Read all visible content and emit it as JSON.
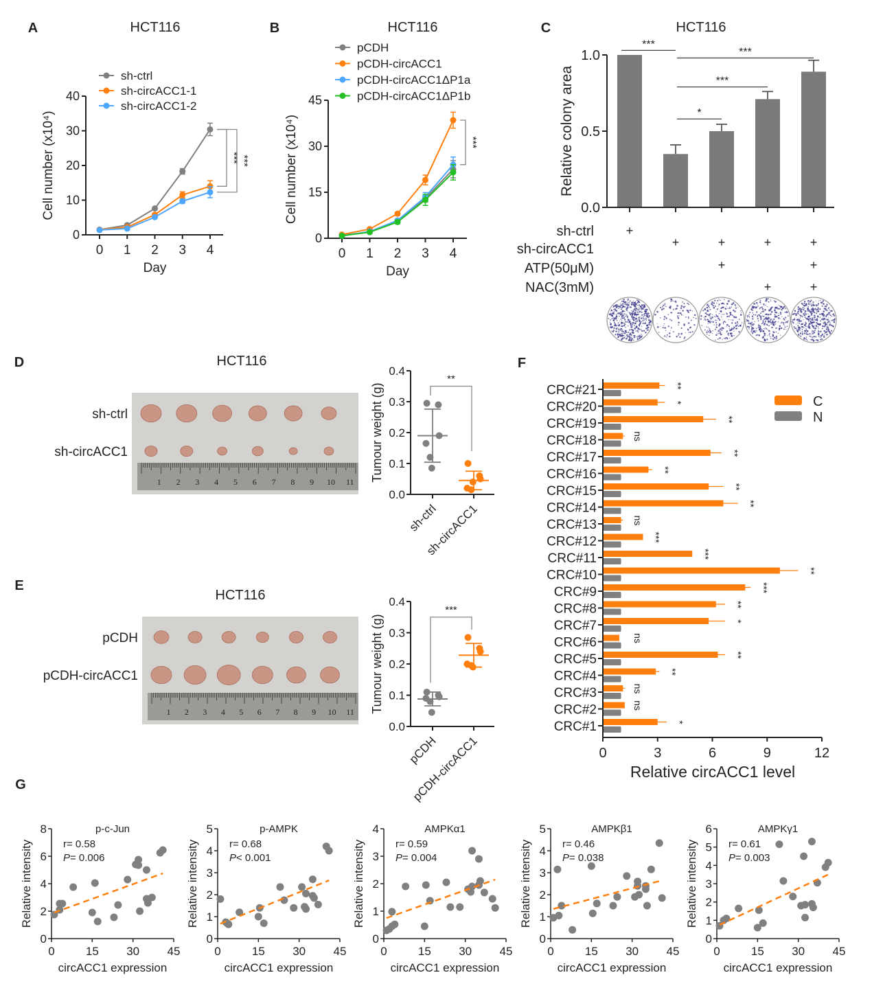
{
  "colors": {
    "gray": "#808080",
    "orange": "#ff7f0e",
    "blue": "#4da6ff",
    "green": "#22c022",
    "bar_gray": "#7a7a7a",
    "colony": "#3c3a8a"
  },
  "chart_data": [
    {
      "panel": "A",
      "type": "line",
      "title": "HCT116",
      "xlabel": "Day",
      "ylabel": "Cell number (x10⁴)",
      "x": [
        0,
        1,
        2,
        3,
        4
      ],
      "ylim": [
        0,
        40
      ],
      "yticks": [
        0,
        10,
        20,
        30,
        40
      ],
      "series": [
        {
          "name": "sh-ctrl",
          "color": "#808080",
          "values": [
            1.5,
            2.8,
            7.6,
            18.3,
            30.4
          ],
          "errors": [
            0.3,
            0.3,
            0.4,
            0.8,
            1.8
          ]
        },
        {
          "name": "sh-circACC1-1",
          "color": "#ff7f0e",
          "values": [
            1.5,
            2.2,
            5.8,
            11.5,
            14.0
          ],
          "errors": [
            0.3,
            0.3,
            0.4,
            0.9,
            1.6
          ]
        },
        {
          "name": "sh-circACC1-2",
          "color": "#4da6ff",
          "values": [
            1.4,
            1.8,
            5.1,
            9.7,
            12.3
          ],
          "errors": [
            0.3,
            0.3,
            0.4,
            0.6,
            1.6
          ]
        }
      ],
      "significance": [
        "***",
        "***"
      ]
    },
    {
      "panel": "B",
      "type": "line",
      "title": "HCT116",
      "xlabel": "Day",
      "ylabel": "Cell number (x10⁴)",
      "x": [
        0,
        1,
        2,
        3,
        4
      ],
      "ylim": [
        0,
        45
      ],
      "yticks": [
        0,
        15,
        30,
        45
      ],
      "series": [
        {
          "name": "pCDH",
          "color": "#808080",
          "values": [
            1.0,
            2.0,
            5.5,
            13.0,
            22.5
          ],
          "errors": [
            0.3,
            0.3,
            0.5,
            1.2,
            2.8
          ]
        },
        {
          "name": "pCDH-circACC1",
          "color": "#ff7f0e",
          "values": [
            1.2,
            3.0,
            8.0,
            19.0,
            38.5
          ],
          "errors": [
            0.3,
            0.4,
            0.5,
            1.6,
            2.6
          ]
        },
        {
          "name": "pCDH-circACC1ΔP1a",
          "color": "#4da6ff",
          "values": [
            0.8,
            2.2,
            5.8,
            13.5,
            24.0
          ],
          "errors": [
            0.3,
            0.3,
            0.5,
            1.4,
            2.5
          ]
        },
        {
          "name": "pCDH-circACC1ΔP1b",
          "color": "#22c022",
          "values": [
            0.8,
            2.0,
            5.3,
            12.5,
            21.5
          ],
          "errors": [
            0.3,
            0.3,
            0.6,
            1.8,
            2.5
          ]
        }
      ],
      "significance": [
        "***"
      ]
    },
    {
      "panel": "C",
      "type": "bar",
      "title": "HCT116",
      "ylabel": "Relative colony area",
      "ylim": [
        0,
        1.0
      ],
      "yticks": [
        "0.0",
        "0.5",
        "1.0"
      ],
      "values": [
        1.0,
        0.35,
        0.5,
        0.71,
        0.89
      ],
      "errors": [
        0,
        0.06,
        0.045,
        0.05,
        0.075
      ],
      "comparisons": [
        {
          "from": 0,
          "to": 1,
          "label": "***"
        },
        {
          "from": 1,
          "to": 4,
          "label": "***"
        },
        {
          "from": 1,
          "to": 3,
          "label": "***"
        },
        {
          "from": 1,
          "to": 2,
          "label": "*"
        }
      ],
      "conditions": [
        {
          "label": "sh-ctrl",
          "marks": [
            "+",
            "",
            "",
            "",
            ""
          ]
        },
        {
          "label": "sh-circACC1",
          "marks": [
            "",
            "+",
            "+",
            "+",
            "+"
          ]
        },
        {
          "label": "ATP(50μM)",
          "marks": [
            "",
            "",
            "+",
            "",
            "+"
          ]
        },
        {
          "label": "NAC(3mM)",
          "marks": [
            "",
            "",
            "",
            "+",
            "+"
          ]
        }
      ]
    },
    {
      "panel": "D",
      "type": "scatter",
      "title": "HCT116",
      "ylabel": "Tumour weight (g)",
      "photo_rows": [
        "sh-ctrl",
        "sh-circACC1"
      ],
      "ylim": [
        0,
        0.4
      ],
      "yticks": [
        "0.0",
        "0.1",
        "0.2",
        "0.3",
        "0.4"
      ],
      "groups": [
        {
          "name": "sh-ctrl",
          "color": "#808080",
          "values": [
            0.295,
            0.29,
            0.19,
            0.165,
            0.12,
            0.085
          ],
          "mean": 0.19,
          "sd": 0.086
        },
        {
          "name": "sh-circACC1",
          "color": "#ff7f0e",
          "values": [
            0.1,
            0.06,
            0.05,
            0.02,
            0.015,
            0.04
          ],
          "mean": 0.045,
          "sd": 0.03
        }
      ],
      "significance": "**"
    },
    {
      "panel": "E",
      "type": "scatter",
      "title": "HCT116",
      "ylabel": "Tumour weight (g)",
      "photo_rows": [
        "pCDH",
        "pCDH-circACC1"
      ],
      "ylim": [
        0,
        0.4
      ],
      "yticks": [
        "0.0",
        "0.1",
        "0.2",
        "0.3",
        "0.4"
      ],
      "groups": [
        {
          "name": "pCDH",
          "color": "#808080",
          "values": [
            0.11,
            0.1,
            0.095,
            0.09,
            0.08,
            0.045
          ],
          "mean": 0.088,
          "sd": 0.022
        },
        {
          "name": "pCDH-circACC1",
          "color": "#ff7f0e",
          "values": [
            0.285,
            0.25,
            0.24,
            0.2,
            0.195,
            0.19
          ],
          "mean": 0.228,
          "sd": 0.038
        }
      ],
      "significance": "***"
    },
    {
      "panel": "F",
      "type": "bar",
      "orientation": "horizontal",
      "xlabel": "Relative circACC1 level",
      "xlim": [
        0,
        12
      ],
      "xticks": [
        0,
        3,
        6,
        9,
        12
      ],
      "legend": [
        {
          "name": "C",
          "color": "#ff7f0e"
        },
        {
          "name": "N",
          "color": "#808080"
        }
      ],
      "categories": [
        "CRC#21",
        "CRC#20",
        "CRC#19",
        "CRC#18",
        "CRC#17",
        "CRC#16",
        "CRC#15",
        "CRC#14",
        "CRC#13",
        "CRC#12",
        "CRC#11",
        "CRC#10",
        "CRC#9",
        "CRC#8",
        "CRC#7",
        "CRC#6",
        "CRC#5",
        "CRC#4",
        "CRC#3",
        "CRC#2",
        "CRC#1"
      ],
      "series": [
        {
          "name": "C",
          "values": [
            3.1,
            3.0,
            5.5,
            1.1,
            5.9,
            2.5,
            5.8,
            6.6,
            1.0,
            2.2,
            4.9,
            9.7,
            7.8,
            6.2,
            5.8,
            0.9,
            6.3,
            2.9,
            1.1,
            1.2,
            3.0
          ],
          "errors": [
            0.3,
            0.4,
            0.7,
            0.1,
            0.6,
            0.2,
            0.8,
            0.8,
            0.1,
            0.0,
            0.0,
            1.0,
            0.3,
            0.5,
            0.9,
            0.0,
            0.4,
            0.2,
            0.1,
            0.0,
            0.5
          ]
        },
        {
          "name": "N",
          "values": [
            1,
            1,
            1,
            1,
            1,
            1,
            1,
            1,
            1,
            1,
            1,
            1,
            1,
            1,
            1,
            1,
            1,
            1,
            1,
            1,
            1
          ]
        }
      ],
      "significance": [
        "**",
        "*",
        "**",
        "ns",
        "**",
        "**",
        "**",
        "**",
        "ns",
        "***",
        "***",
        "**",
        "***",
        "**",
        "*",
        "ns",
        "**",
        "**",
        "ns",
        "ns",
        "*"
      ]
    },
    {
      "panel": "G",
      "type": "scatter",
      "plots": [
        {
          "title": "p-c-Jun",
          "r": "r= 0.58",
          "p_symbol": "P",
          "p_value": "= 0.006",
          "ylim": [
            0,
            8
          ],
          "yticks": [
            0,
            2,
            4,
            6,
            8
          ],
          "points": [
            [
              1,
              1.75
            ],
            [
              3,
              2.1
            ],
            [
              3,
              2.55
            ],
            [
              4,
              2.55
            ],
            [
              8,
              3.75
            ],
            [
              15,
              1.9
            ],
            [
              16,
              4.05
            ],
            [
              17,
              1.25
            ],
            [
              23,
              1.55
            ],
            [
              24.5,
              2.45
            ],
            [
              28,
              4.3
            ],
            [
              31,
              5.4
            ],
            [
              31.5,
              5.45
            ],
            [
              32,
              5.75
            ],
            [
              32,
              5.35
            ],
            [
              32.5,
              2.0
            ],
            [
              35,
              5.0
            ],
            [
              35,
              2.9
            ],
            [
              35.5,
              2.6
            ],
            [
              37,
              3.0
            ],
            [
              40,
              6.25
            ],
            [
              41,
              6.45
            ]
          ],
          "trend": [
            [
              1,
              1.9
            ],
            [
              41,
              4.75
            ]
          ]
        },
        {
          "title": "p-AMPK",
          "r": "r= 0.68",
          "p_symbol": "P",
          "p_value": "< 0.001",
          "ylim": [
            0,
            5
          ],
          "yticks": [
            0,
            1,
            2,
            3,
            4,
            5
          ],
          "points": [
            [
              1,
              1.8
            ],
            [
              3,
              0.75
            ],
            [
              3.5,
              0.7
            ],
            [
              4,
              0.65
            ],
            [
              8,
              1.2
            ],
            [
              15,
              1.0
            ],
            [
              15.5,
              1.4
            ],
            [
              17,
              0.7
            ],
            [
              23,
              2.35
            ],
            [
              24.5,
              1.75
            ],
            [
              28,
              1.4
            ],
            [
              31,
              2.35
            ],
            [
              32,
              1.45
            ],
            [
              32.5,
              1.35
            ],
            [
              32.5,
              2.05
            ],
            [
              35,
              2.7
            ],
            [
              35,
              1.95
            ],
            [
              35.5,
              1.85
            ],
            [
              37,
              1.55
            ],
            [
              40,
              4.2
            ],
            [
              41,
              4.0
            ]
          ],
          "trend": [
            [
              1,
              0.68
            ],
            [
              41,
              2.65
            ]
          ]
        },
        {
          "title": "AMPKα1",
          "r": "r= 0.59",
          "p_symbol": "P",
          "p_value": "= 0.004",
          "ylim": [
            0,
            4
          ],
          "yticks": [
            0,
            1,
            2,
            3,
            4
          ],
          "points": [
            [
              1,
              0.3
            ],
            [
              2,
              0.35
            ],
            [
              3,
              0.45
            ],
            [
              3,
              0.98
            ],
            [
              4,
              0.52
            ],
            [
              8,
              1.9
            ],
            [
              15,
              0.45
            ],
            [
              15.5,
              1.95
            ],
            [
              17,
              1.38
            ],
            [
              23,
              2.05
            ],
            [
              24.5,
              1.15
            ],
            [
              28,
              1.15
            ],
            [
              31,
              1.8
            ],
            [
              32,
              1.7
            ],
            [
              32.5,
              1.9
            ],
            [
              32.5,
              3.2
            ],
            [
              35,
              1.95
            ],
            [
              35,
              2.9
            ],
            [
              35.5,
              2.1
            ],
            [
              37,
              1.68
            ],
            [
              40,
              1.45
            ],
            [
              41,
              1.12
            ]
          ],
          "trend": [
            [
              1,
              0.75
            ],
            [
              41,
              2.15
            ]
          ]
        },
        {
          "title": "AMPKβ1",
          "r": "r= 0.46",
          "p_symbol": "P",
          "p_value": "= 0.038",
          "ylim": [
            0,
            5
          ],
          "yticks": [
            0,
            1,
            2,
            3,
            4,
            5
          ],
          "points": [
            [
              1,
              0.95
            ],
            [
              2.5,
              3.15
            ],
            [
              3,
              1.05
            ],
            [
              4,
              1.5
            ],
            [
              8,
              0.4
            ],
            [
              15,
              3.3
            ],
            [
              15.5,
              1.15
            ],
            [
              17,
              1.6
            ],
            [
              23,
              1.5
            ],
            [
              24.5,
              1.9
            ],
            [
              28,
              2.85
            ],
            [
              31,
              1.9
            ],
            [
              32,
              2.6
            ],
            [
              32,
              2.4
            ],
            [
              32.5,
              2.0
            ],
            [
              35,
              2.4
            ],
            [
              35,
              2.25
            ],
            [
              35.5,
              1.5
            ],
            [
              37,
              3.15
            ],
            [
              40,
              4.35
            ],
            [
              41,
              1.85
            ]
          ],
          "trend": [
            [
              1,
              1.35
            ],
            [
              41,
              2.65
            ]
          ]
        },
        {
          "title": "AMPKγ1",
          "r": "r= 0.61",
          "p_symbol": "P",
          "p_value": "= 0.003",
          "ylim": [
            0,
            6
          ],
          "yticks": [
            0,
            1,
            2,
            3,
            4,
            5,
            6
          ],
          "points": [
            [
              1,
              0.7
            ],
            [
              2.5,
              1.0
            ],
            [
              3.5,
              1.1
            ],
            [
              8,
              1.65
            ],
            [
              15,
              0.6
            ],
            [
              15.5,
              1.55
            ],
            [
              17,
              0.85
            ],
            [
              23,
              5.15
            ],
            [
              24.5,
              3.15
            ],
            [
              28,
              2.3
            ],
            [
              31,
              1.8
            ],
            [
              32,
              4.5
            ],
            [
              32.5,
              1.85
            ],
            [
              32.5,
              1.15
            ],
            [
              35,
              5.3
            ],
            [
              35,
              1.9
            ],
            [
              35.5,
              1.7
            ],
            [
              37,
              3.05
            ],
            [
              40,
              3.9
            ],
            [
              41,
              4.15
            ]
          ],
          "trend": [
            [
              1,
              0.75
            ],
            [
              41,
              3.5
            ]
          ]
        }
      ],
      "xlim": [
        0,
        45
      ],
      "xticks": [
        0,
        15,
        30,
        45
      ],
      "xlabel": "circACC1 expression",
      "ylabel": "Relative intensity"
    }
  ]
}
